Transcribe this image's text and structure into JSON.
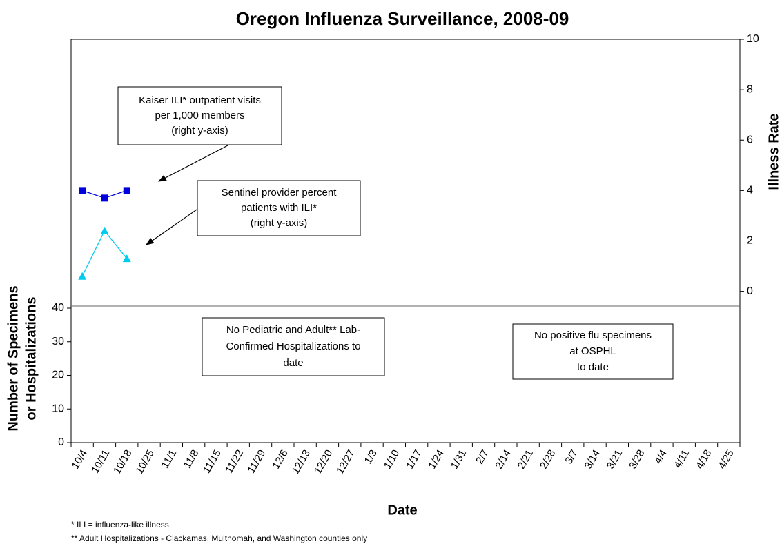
{
  "chart_data": {
    "type": "line",
    "title": "Oregon Influenza Surveillance, 2008-09",
    "x_label": "Date",
    "y_label": [
      "Number of Specimens",
      "or Hospitalizations"
    ],
    "y2_label": "Illness Rate",
    "categories": [
      "10/4",
      "10/11",
      "10/18",
      "10/25",
      "11/1",
      "11/8",
      "11/15",
      "11/22",
      "11/29",
      "12/6",
      "12/13",
      "12/20",
      "12/27",
      "1/3",
      "1/10",
      "1/17",
      "1/24",
      "1/31",
      "2/7",
      "2/14",
      "2/21",
      "2/28",
      "3/7",
      "3/14",
      "3/21",
      "3/28",
      "4/4",
      "4/11",
      "4/18",
      "4/25"
    ],
    "ylim": [
      0,
      120
    ],
    "yticks": [
      0,
      10,
      20,
      30,
      40
    ],
    "y2lim": [
      -6,
      10
    ],
    "y2ticks": [
      0,
      2,
      4,
      6,
      8,
      10
    ],
    "series": [
      {
        "name": "Kaiser ILI* outpatient visits per 1,000 members",
        "color": "#0000dd",
        "marker": "square",
        "axis": "y2",
        "values": [
          4.0,
          3.7,
          4.0,
          null,
          null,
          null,
          null,
          null,
          null,
          null,
          null,
          null,
          null,
          null,
          null,
          null,
          null,
          null,
          null,
          null,
          null,
          null,
          null,
          null,
          null,
          null,
          null,
          null,
          null,
          null
        ]
      },
      {
        "name": "Sentinel provider percent patients with ILI*",
        "color": "#00ccee",
        "marker": "triangle",
        "axis": "y2",
        "values": [
          0.6,
          2.4,
          1.3,
          null,
          null,
          null,
          null,
          null,
          null,
          null,
          null,
          null,
          null,
          null,
          null,
          null,
          null,
          null,
          null,
          null,
          null,
          null,
          null,
          null,
          null,
          null,
          null,
          null,
          null,
          null
        ]
      }
    ],
    "annotations": [
      [
        "Kaiser ILI* outpatient visits",
        "per 1,000 members",
        "(right y-axis)"
      ],
      [
        "Sentinel provider percent",
        "patients with ILI*",
        "(right y-axis)"
      ],
      [
        "No Pediatric and Adult** Lab-",
        "Confirmed Hospitalizations to",
        "date"
      ],
      [
        "No positive flu specimens",
        "at OSPHL",
        "to date"
      ]
    ],
    "footnotes": [
      "* ILI = influenza-like illness",
      "** Adult Hospitalizations - Clackamas, Multnomah, and Washington counties only"
    ]
  }
}
